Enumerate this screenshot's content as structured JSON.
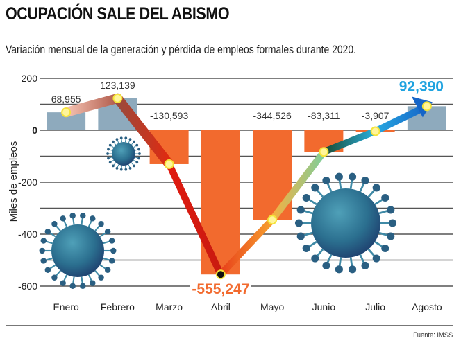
{
  "header": {
    "title": "OCUPACIÓN SALE DEL ABISMO",
    "subtitle": "Variación mensual de la generación y pérdida de empleos formales durante 2020."
  },
  "footer": {
    "source": "Fuente: IMSS"
  },
  "chart_data": {
    "type": "bar",
    "title": "OCUPACIÓN SALE DEL ABISMO",
    "subtitle": "Variación mensual de la generación y pérdida de empleos formales durante 2020.",
    "xlabel": "",
    "ylabel": "Miles de empleos",
    "ylim": [
      -600,
      200
    ],
    "yticks": [
      200,
      0,
      -200,
      -400,
      -600
    ],
    "ytick_labels": [
      "200",
      "0",
      "-200",
      "-400",
      "-600"
    ],
    "grid": true,
    "categories": [
      "Enero",
      "Febrero",
      "Marzo",
      "Abril",
      "Mayo",
      "Junio",
      "Julio",
      "Agosto"
    ],
    "values": [
      68955,
      123139,
      -130593,
      -555247,
      -344526,
      -83311,
      -3907,
      92390
    ],
    "labels": [
      "68,955",
      "123,139",
      "-130,593",
      "-555,247",
      "-344,526",
      "-83,311",
      "-3,907",
      "92,390"
    ],
    "colors": {
      "positive": "#8eaabd",
      "negative": "#f26a2e",
      "highlight_neg": "#f26a2e",
      "highlight_pos": "#1fa3e0"
    },
    "overlay_line": "trend arrow connecting monthly values"
  }
}
